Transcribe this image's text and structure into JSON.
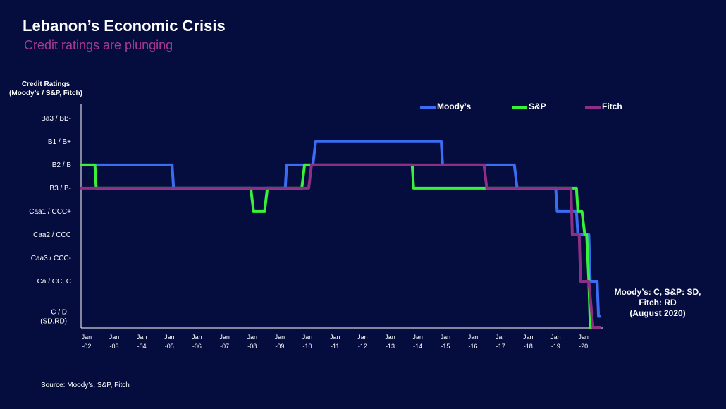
{
  "title": "Lebanon’s Economic Crisis",
  "subtitle": "Credit ratings are plunging",
  "source": "Source: Moody’s, S&P, Fitch",
  "annotation": [
    "Moody’s: C, S&P: SD,",
    "Fitch: RD",
    "(August 2020)"
  ],
  "colors": {
    "background": "#040d3d",
    "moodys": "#3a6cf4",
    "sp": "#39f03a",
    "fitch": "#8e2f86",
    "axis": "#ffffff",
    "subtitle": "#a83a94"
  },
  "chart_data": {
    "type": "line",
    "title": "Lebanon’s Economic Crisis",
    "subtitle": "Credit ratings are plunging",
    "ylabel": [
      "Credit Ratings",
      "(Moody’s / S&P, Fitch)"
    ],
    "y_categories": [
      "C / D\n(SD,RD)",
      "Ca / CC, C",
      "Caa3 / CCC-",
      "Caa2 / CCC",
      "Caa1 / CCC+",
      "B3 / B-",
      "B2 / B",
      "B1 / B+",
      "Ba3 / BB-"
    ],
    "y_levels": [
      0.5,
      2,
      3,
      4,
      5,
      6,
      7,
      8,
      9
    ],
    "x_tick_labels": [
      [
        "Jan",
        "-02"
      ],
      [
        "Jan",
        "-03"
      ],
      [
        "Jan",
        "-04"
      ],
      [
        "Jan",
        "-05"
      ],
      [
        "Jan",
        "-06"
      ],
      [
        "Jan",
        "-07"
      ],
      [
        "Jan",
        "-08"
      ],
      [
        "Jan",
        "-09"
      ],
      [
        "Jan",
        "-10"
      ],
      [
        "Jan",
        "-11"
      ],
      [
        "Jan",
        "-12"
      ],
      [
        "Jan",
        "-13"
      ],
      [
        "Jan",
        "-14"
      ],
      [
        "Jan",
        "-15"
      ],
      [
        "Jan",
        "-16"
      ],
      [
        "Jan",
        "-17"
      ],
      [
        "Jan",
        "-18"
      ],
      [
        "Jan",
        "-19"
      ],
      [
        "Jan",
        "-20"
      ]
    ],
    "xlim": [
      2001.8,
      2020.7
    ],
    "ylim": [
      0,
      9.6
    ],
    "grid": false,
    "legend_position": "top-right",
    "series": [
      {
        "name": "Moody’s",
        "color": "#3a6cf4",
        "points": [
          [
            2001.8,
            7
          ],
          [
            2005.1,
            7
          ],
          [
            2005.15,
            6
          ],
          [
            2009.2,
            6
          ],
          [
            2009.25,
            7
          ],
          [
            2010.2,
            7
          ],
          [
            2010.3,
            8
          ],
          [
            2014.85,
            8
          ],
          [
            2014.9,
            7
          ],
          [
            2017.5,
            7
          ],
          [
            2017.6,
            6
          ],
          [
            2019.0,
            6
          ],
          [
            2019.05,
            5
          ],
          [
            2019.75,
            5
          ],
          [
            2019.8,
            4
          ],
          [
            2020.2,
            4
          ],
          [
            2020.25,
            2
          ],
          [
            2020.5,
            2
          ],
          [
            2020.55,
            0.5
          ],
          [
            2020.6,
            0.5
          ]
        ]
      },
      {
        "name": "S&P",
        "color": "#39f03a",
        "points": [
          [
            2001.8,
            7
          ],
          [
            2002.3,
            7
          ],
          [
            2002.35,
            6
          ],
          [
            2007.95,
            6
          ],
          [
            2008.05,
            5
          ],
          [
            2008.45,
            5
          ],
          [
            2008.55,
            6
          ],
          [
            2009.8,
            6
          ],
          [
            2009.9,
            7
          ],
          [
            2013.8,
            7
          ],
          [
            2013.85,
            6
          ],
          [
            2016.45,
            6
          ],
          [
            2016.55,
            6
          ],
          [
            2019.65,
            6
          ],
          [
            2019.75,
            6
          ],
          [
            2019.8,
            5
          ],
          [
            2019.95,
            5
          ],
          [
            2020.05,
            4
          ],
          [
            2020.12,
            4
          ],
          [
            2020.2,
            2
          ],
          [
            2020.25,
            0
          ],
          [
            2020.6,
            0
          ]
        ]
      },
      {
        "name": "Fitch",
        "color": "#8e2f86",
        "points": [
          [
            2001.8,
            6
          ],
          [
            2009.8,
            6
          ],
          [
            2010.05,
            6
          ],
          [
            2010.15,
            7
          ],
          [
            2016.4,
            7
          ],
          [
            2016.5,
            6
          ],
          [
            2019.55,
            6
          ],
          [
            2019.6,
            4
          ],
          [
            2019.85,
            4
          ],
          [
            2019.9,
            2
          ],
          [
            2020.2,
            2
          ],
          [
            2020.35,
            0
          ],
          [
            2020.6,
            0
          ]
        ]
      }
    ]
  }
}
